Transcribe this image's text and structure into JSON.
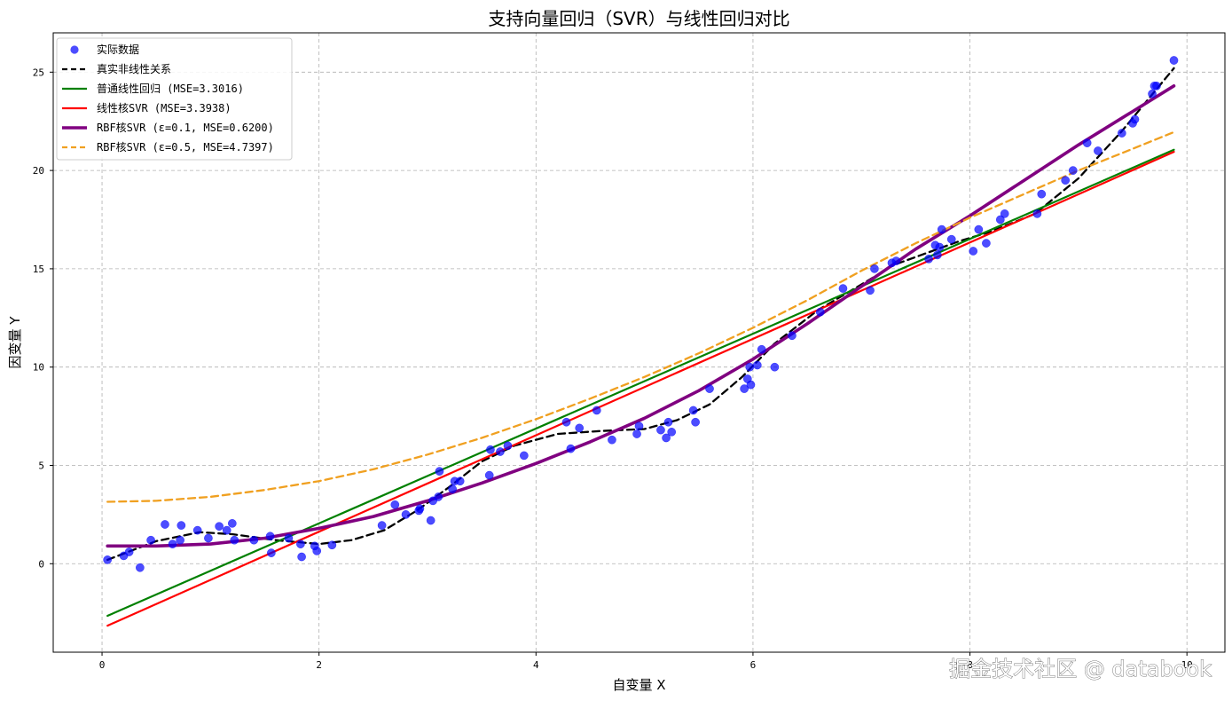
{
  "chart_data": {
    "type": "scatter",
    "title": "支持向量回归（SVR）与线性回归对比",
    "xlabel": "自变量 X",
    "ylabel": "因变量 Y",
    "xlim": [
      -0.45,
      10.35
    ],
    "ylim": [
      -4.5,
      27
    ],
    "xticks": [
      0,
      2,
      4,
      6,
      8,
      10
    ],
    "yticks": [
      0,
      5,
      10,
      15,
      20,
      25
    ],
    "grid": true,
    "legend_position": "top-left",
    "series": [
      {
        "name": "实际数据",
        "kind": "scatter",
        "color": "#0000ff",
        "x": [
          0.05,
          0.2,
          0.25,
          0.35,
          0.45,
          0.58,
          0.65,
          0.72,
          0.73,
          0.88,
          0.98,
          1.08,
          1.15,
          1.2,
          1.22,
          1.4,
          1.55,
          1.56,
          1.72,
          1.83,
          1.84,
          1.96,
          1.98,
          2.12,
          2.58,
          2.7,
          2.8,
          2.92,
          2.93,
          3.03,
          3.05,
          3.1,
          3.11,
          3.23,
          3.25,
          3.3,
          3.57,
          3.58,
          3.67,
          3.74,
          3.89,
          4.28,
          4.32,
          4.4,
          4.56,
          4.7,
          4.93,
          4.95,
          5.15,
          5.2,
          5.22,
          5.25,
          5.45,
          5.47,
          5.6,
          5.92,
          5.95,
          5.97,
          5.98,
          6.04,
          6.08,
          6.2,
          6.36,
          6.62,
          6.83,
          7.08,
          7.12,
          7.28,
          7.32,
          7.62,
          7.68,
          7.7,
          7.72,
          7.74,
          7.83,
          8.03,
          8.08,
          8.15,
          8.28,
          8.32,
          8.62,
          8.66,
          8.88,
          8.95,
          9.08,
          9.18,
          9.4,
          9.5,
          9.52,
          9.68,
          9.7,
          9.72,
          9.88
        ],
        "y": [
          0.2,
          0.4,
          0.6,
          -0.2,
          1.2,
          2.0,
          1.0,
          1.2,
          1.95,
          1.7,
          1.3,
          1.9,
          1.7,
          2.05,
          1.2,
          1.2,
          1.4,
          0.55,
          1.3,
          1.0,
          0.35,
          0.9,
          0.65,
          0.95,
          1.95,
          3.0,
          2.5,
          2.7,
          2.8,
          2.2,
          3.2,
          3.4,
          4.7,
          3.8,
          4.2,
          4.2,
          4.5,
          5.8,
          5.7,
          6.0,
          5.5,
          7.2,
          5.85,
          6.9,
          7.8,
          6.3,
          6.6,
          7.0,
          6.8,
          6.4,
          7.2,
          6.7,
          7.8,
          7.2,
          8.9,
          8.9,
          9.4,
          10.0,
          9.1,
          10.1,
          10.9,
          10.0,
          11.6,
          12.8,
          14.0,
          13.9,
          15.0,
          15.3,
          15.4,
          15.5,
          16.2,
          15.7,
          16.1,
          17.0,
          16.5,
          15.9,
          17.0,
          16.3,
          17.5,
          17.8,
          17.8,
          18.8,
          19.5,
          20.0,
          21.4,
          21.0,
          21.9,
          22.4,
          22.6,
          23.9,
          24.3,
          24.3,
          25.6
        ]
      },
      {
        "name": "真实非线性关系",
        "kind": "line",
        "color": "#000000",
        "dash": true,
        "width": 2.3,
        "x": [
          0.05,
          0.5,
          0.9,
          1.2,
          1.6,
          2.0,
          2.3,
          2.6,
          2.9,
          3.2,
          3.5,
          3.8,
          4.2,
          4.6,
          5.0,
          5.3,
          5.6,
          5.9,
          6.2,
          6.6,
          7.0,
          7.3,
          7.6,
          7.9,
          8.2,
          8.6,
          9.0,
          9.4,
          9.88
        ],
        "y": [
          0.2,
          1.15,
          1.6,
          1.5,
          1.2,
          1.0,
          1.2,
          1.7,
          2.7,
          3.9,
          5.2,
          6.0,
          6.6,
          6.75,
          6.85,
          7.3,
          8.1,
          9.5,
          11.2,
          12.9,
          14.2,
          15.2,
          15.8,
          16.4,
          16.9,
          17.8,
          19.6,
          22.0,
          25.2
        ]
      },
      {
        "name": "普通线性回归 (MSE=3.3016)",
        "kind": "line",
        "color": "#008000",
        "dash": false,
        "width": 2.2,
        "x": [
          0.05,
          9.88
        ],
        "y": [
          -2.65,
          21.05
        ]
      },
      {
        "name": "线性核SVR (MSE=3.3938)",
        "kind": "line",
        "color": "#ff0000",
        "dash": false,
        "width": 2.2,
        "x": [
          0.05,
          9.88
        ],
        "y": [
          -3.15,
          20.95
        ]
      },
      {
        "name": "RBF核SVR (ε=0.1, MSE=0.6200)",
        "kind": "line",
        "color": "#800080",
        "dash": false,
        "width": 3.6,
        "x": [
          0.05,
          0.5,
          1.0,
          1.5,
          2.0,
          2.5,
          3.0,
          3.5,
          4.0,
          4.5,
          5.0,
          5.5,
          6.0,
          6.5,
          7.0,
          7.5,
          8.0,
          8.5,
          9.0,
          9.5,
          9.88
        ],
        "y": [
          0.9,
          0.9,
          1.0,
          1.3,
          1.8,
          2.4,
          3.2,
          4.1,
          5.1,
          6.2,
          7.4,
          8.8,
          10.4,
          12.2,
          14.1,
          16.0,
          17.7,
          19.5,
          21.3,
          23.0,
          24.3
        ]
      },
      {
        "name": "RBF核SVR (ε=0.5, MSE=4.7397)",
        "kind": "line",
        "color": "#f0a020",
        "dash": true,
        "width": 2.3,
        "x": [
          0.05,
          0.5,
          1.0,
          1.5,
          2.0,
          2.5,
          3.0,
          3.5,
          4.0,
          4.5,
          5.0,
          5.5,
          6.0,
          6.5,
          7.0,
          7.5,
          8.0,
          8.5,
          9.0,
          9.5,
          9.88
        ],
        "y": [
          3.15,
          3.2,
          3.4,
          3.75,
          4.2,
          4.8,
          5.55,
          6.4,
          7.35,
          8.4,
          9.5,
          10.7,
          12.0,
          13.4,
          14.9,
          16.3,
          17.6,
          18.8,
          20.0,
          21.1,
          21.95
        ]
      }
    ]
  },
  "watermark": "掘金技术社区 @ databook"
}
